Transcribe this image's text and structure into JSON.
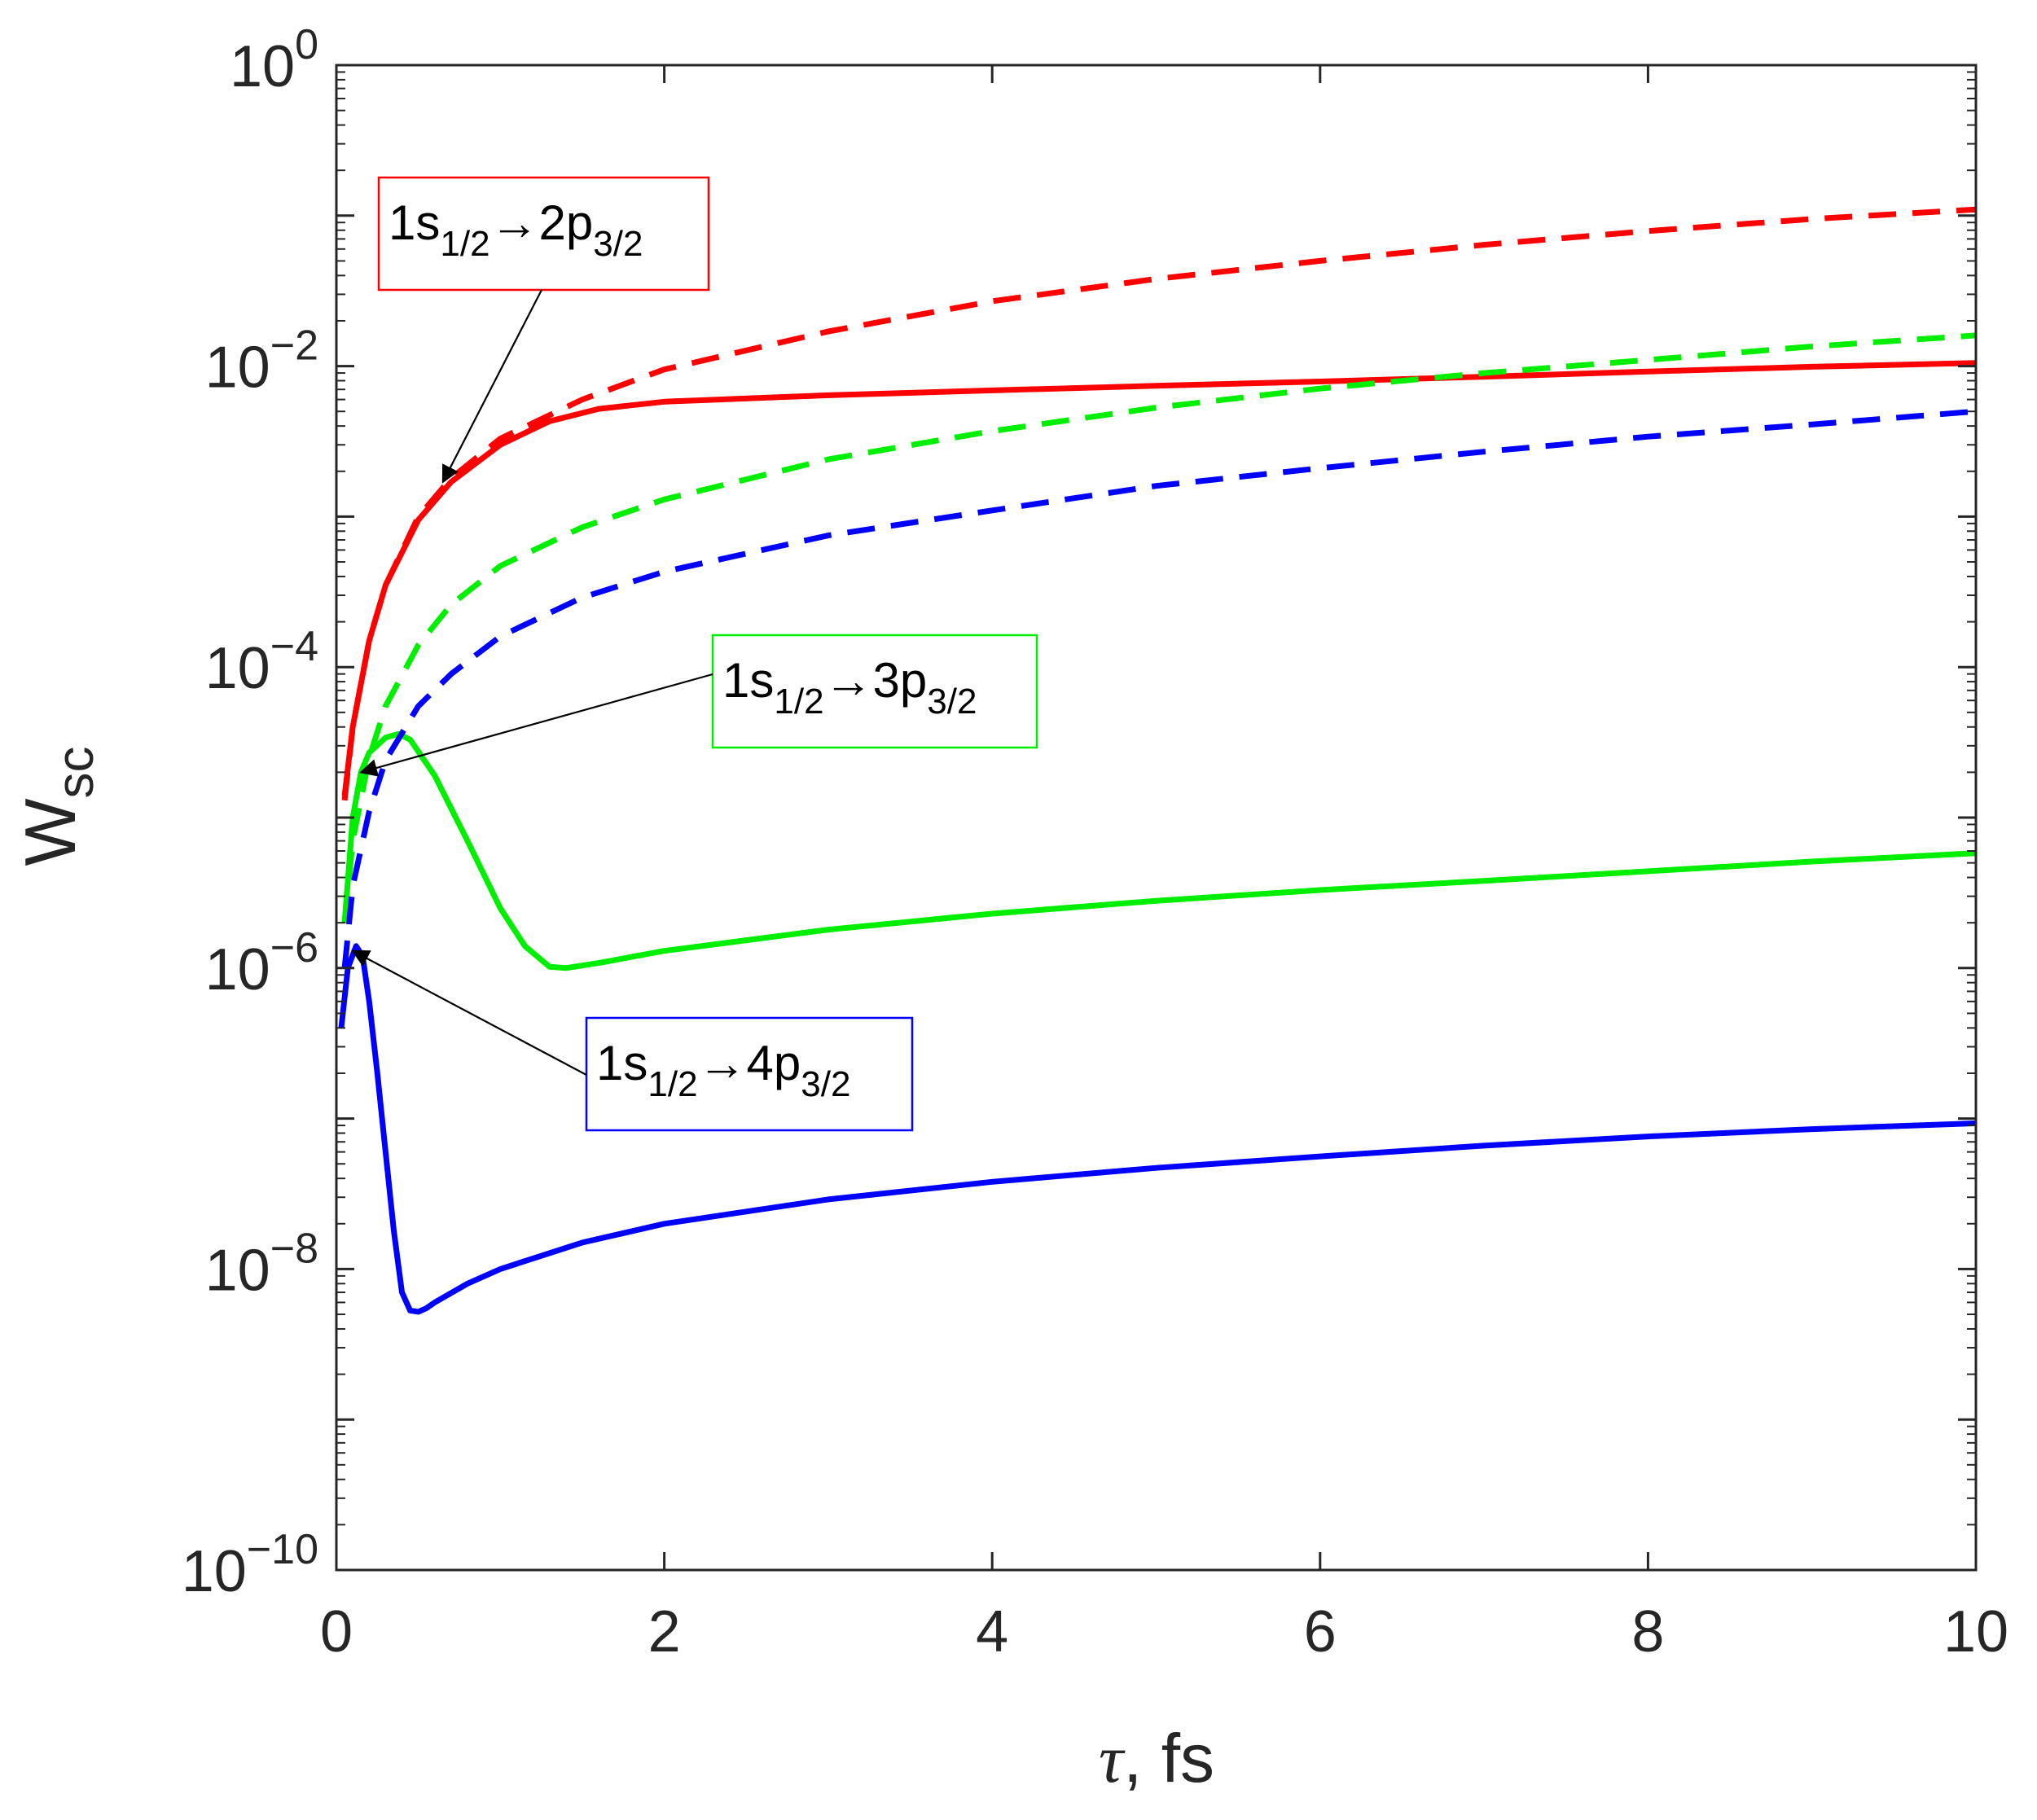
{
  "chart_data": {
    "type": "line",
    "yscale": "log",
    "xlabel": "τ, fs",
    "xlabel_symbol": "τ",
    "xlabel_unit": ", fs",
    "ylabel_main": "W",
    "ylabel_sub": "sc",
    "xlim": [
      0,
      10
    ],
    "ylim": [
      1e-10,
      1
    ],
    "x_ticks": [
      0,
      2,
      4,
      6,
      8,
      10
    ],
    "x_tick_labels": [
      "0",
      "2",
      "4",
      "6",
      "8",
      "10"
    ],
    "y_ticks": [
      {
        "value": 1,
        "base": "10",
        "exp": "0"
      },
      {
        "value": 0.01,
        "base": "10",
        "exp": "−2"
      },
      {
        "value": 0.0001,
        "base": "10",
        "exp": "−4"
      },
      {
        "value": 1e-06,
        "base": "10",
        "exp": "−6"
      },
      {
        "value": 1e-08,
        "base": "10",
        "exp": "−8"
      },
      {
        "value": 1e-10,
        "base": "10",
        "exp": "−10"
      }
    ],
    "grid": false,
    "colors": {
      "red": "#ff0000",
      "green": "#00ee00",
      "blue": "#0000ff",
      "axis": "#262626"
    },
    "series": [
      {
        "name": "1s1/2→2p3/2 dashed",
        "color": "#ff0000",
        "dash": true,
        "x": [
          0.05,
          0.1,
          0.2,
          0.3,
          0.5,
          0.7,
          1.0,
          1.5,
          2.0,
          3.0,
          4.0,
          5.0,
          6.0,
          7.0,
          8.0,
          9.0,
          10.0
        ],
        "y": [
          1.3e-05,
          4e-05,
          0.00015,
          0.00035,
          0.001,
          0.0018,
          0.0033,
          0.006,
          0.0095,
          0.017,
          0.027,
          0.038,
          0.05,
          0.064,
          0.079,
          0.095,
          0.11
        ]
      },
      {
        "name": "1s1/2→2p3/2 solid",
        "color": "#ff0000",
        "dash": false,
        "x": [
          0.05,
          0.1,
          0.2,
          0.3,
          0.5,
          0.7,
          1.0,
          1.3,
          1.6,
          2.0,
          3.0,
          4.0,
          5.0,
          6.0,
          7.0,
          8.0,
          9.0,
          10.0
        ],
        "y": [
          1.4e-05,
          4e-05,
          0.00015,
          0.00035,
          0.00095,
          0.0017,
          0.003,
          0.0043,
          0.0052,
          0.0058,
          0.0064,
          0.0069,
          0.0074,
          0.0079,
          0.0085,
          0.0092,
          0.0099,
          0.0105
        ]
      },
      {
        "name": "1s1/2→3p3/2 dashed",
        "color": "#00ee00",
        "dash": true,
        "x": [
          0.05,
          0.1,
          0.2,
          0.3,
          0.5,
          0.7,
          1.0,
          1.5,
          2.0,
          3.0,
          4.0,
          5.0,
          6.0,
          7.0,
          8.0,
          9.0,
          10.0
        ],
        "y": [
          2e-06,
          7e-06,
          2.5e-05,
          5.5e-05,
          0.00014,
          0.00026,
          0.00047,
          0.00085,
          0.0013,
          0.0024,
          0.0037,
          0.0053,
          0.0071,
          0.009,
          0.011,
          0.0135,
          0.016
        ]
      },
      {
        "name": "1s1/2→3p3/2 solid",
        "color": "#00ee00",
        "dash": false,
        "x": [
          0.05,
          0.1,
          0.15,
          0.2,
          0.3,
          0.38,
          0.45,
          0.6,
          0.8,
          1.0,
          1.15,
          1.3,
          1.4,
          1.6,
          2.0,
          3.0,
          4.0,
          5.0,
          6.0,
          7.0,
          8.0,
          9.0,
          10.0
        ],
        "y": [
          2e-06,
          1e-05,
          2e-05,
          2.7e-05,
          3.4e-05,
          3.6e-05,
          3.3e-05,
          1.9e-05,
          7e-06,
          2.5e-06,
          1.4e-06,
          1.02e-06,
          1e-06,
          1.08e-06,
          1.3e-06,
          1.8e-06,
          2.3e-06,
          2.8e-06,
          3.3e-06,
          3.8e-06,
          4.4e-06,
          5.1e-06,
          5.8e-06
        ]
      },
      {
        "name": "1s1/2→4p3/2 dashed",
        "color": "#0000ff",
        "dash": true,
        "x": [
          0.05,
          0.1,
          0.2,
          0.3,
          0.5,
          0.7,
          1.0,
          1.5,
          2.0,
          3.0,
          4.0,
          5.0,
          6.0,
          7.0,
          8.0,
          9.0,
          10.0
        ],
        "y": [
          1e-06,
          3.5e-06,
          1.1e-05,
          2.4e-05,
          5.5e-05,
          9e-05,
          0.00016,
          0.00029,
          0.00043,
          0.00075,
          0.0011,
          0.0016,
          0.0021,
          0.0027,
          0.0034,
          0.0041,
          0.005
        ]
      },
      {
        "name": "1s1/2→4p3/2 solid",
        "color": "#0000ff",
        "dash": false,
        "x": [
          0.03,
          0.07,
          0.12,
          0.16,
          0.2,
          0.25,
          0.3,
          0.35,
          0.4,
          0.45,
          0.5,
          0.55,
          0.6,
          0.8,
          1.0,
          1.5,
          2.0,
          3.0,
          4.0,
          5.0,
          6.0,
          7.0,
          8.0,
          9.0,
          10.0
        ],
        "y": [
          4e-07,
          1e-06,
          1.4e-06,
          1.2e-06,
          6e-07,
          2e-07,
          6e-08,
          1.8e-08,
          7e-09,
          5.3e-09,
          5.2e-09,
          5.5e-09,
          6e-09,
          8e-09,
          1e-08,
          1.5e-08,
          2e-08,
          2.9e-08,
          3.8e-08,
          4.7e-08,
          5.6e-08,
          6.6e-08,
          7.6e-08,
          8.5e-08,
          9.3e-08
        ]
      }
    ],
    "annotations": [
      {
        "text_main": "1s",
        "sub1": "1/2",
        "arrow": "→",
        "text2": "2p",
        "sub2": "3/2",
        "color": "#ff0000",
        "target": {
          "x": 0.65,
          "y": 0.0017
        }
      },
      {
        "text_main": "1s",
        "sub1": "1/2",
        "arrow": "→",
        "text2": "3p",
        "sub2": "3/2",
        "color": "#00ee00",
        "target": {
          "x": 0.15,
          "y": 2e-05
        }
      },
      {
        "text_main": "1s",
        "sub1": "1/2",
        "arrow": "→",
        "text2": "4p",
        "sub2": "3/2",
        "color": "#0000ff",
        "target": {
          "x": 0.1,
          "y": 1.3e-06
        }
      }
    ]
  }
}
